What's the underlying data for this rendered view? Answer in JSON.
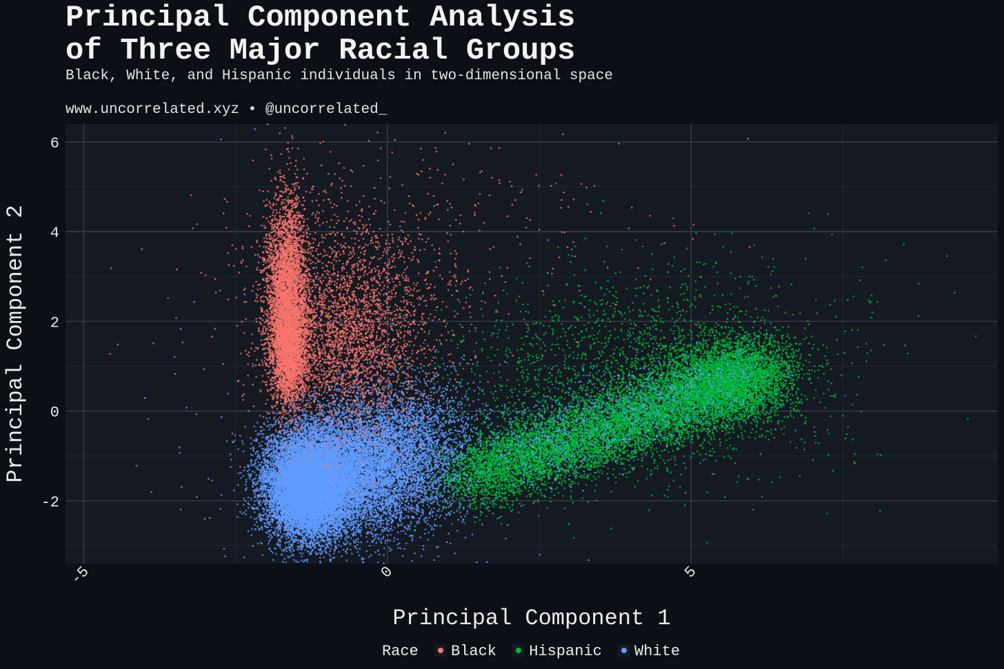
{
  "header": {
    "title_line1": "Principal Component Analysis",
    "title_line2": "of Three Major Racial Groups",
    "subtitle": "Black, White, and Hispanic individuals in two-dimensional space",
    "caption": "www.uncorrelated.xyz • @uncorrelated_"
  },
  "legend": {
    "title": "Race",
    "items": [
      {
        "label": "Black",
        "color": "#f8766d"
      },
      {
        "label": "Hispanic",
        "color": "#00ba38"
      },
      {
        "label": "White",
        "color": "#619cff"
      }
    ]
  },
  "chart_data": {
    "type": "scatter",
    "title": "Principal Component Analysis of Three Major Racial Groups",
    "subtitle": "Black, White, and Hispanic individuals in two-dimensional space",
    "xlabel": "Principal Component 1",
    "ylabel": "Principal Component 2",
    "xlim": [
      -5.3,
      10.05
    ],
    "ylim": [
      -3.4,
      6.4
    ],
    "xticks": [
      -5,
      0,
      5
    ],
    "yticks": [
      -2,
      0,
      2,
      4,
      6
    ],
    "grid": true,
    "legend_position": "bottom",
    "series": [
      {
        "name": "Black",
        "color": "#f8766d",
        "clusters": [
          {
            "n": 4200,
            "cx": -1.65,
            "cy": 2.6,
            "sx": 0.17,
            "sy": 1.1
          },
          {
            "n": 1800,
            "cx": -1.6,
            "cy": 1.3,
            "sx": 0.14,
            "sy": 0.55
          },
          {
            "n": 2800,
            "cx": -0.7,
            "cy": 1.6,
            "sx": 0.65,
            "sy": 1.1
          },
          {
            "n": 600,
            "cx": -0.5,
            "cy": 3.0,
            "sx": 1.0,
            "sy": 1.3
          },
          {
            "n": 200,
            "cx": 0.8,
            "cy": 3.8,
            "sx": 1.8,
            "sy": 1.2
          }
        ]
      },
      {
        "name": "Hispanic",
        "color": "#00ba38",
        "clusters": [
          {
            "n": 9000,
            "type": "band",
            "x0": 1.3,
            "x1": 6.3,
            "y0": -1.5,
            "y1": 0.9,
            "sx": 0.3,
            "sy": 0.4
          },
          {
            "n": 2500,
            "cx": 5.6,
            "cy": 0.7,
            "sx": 0.55,
            "sy": 0.5
          },
          {
            "n": 2000,
            "cx": 4.0,
            "cy": 0.7,
            "sx": 1.6,
            "sy": 1.1
          },
          {
            "n": 150,
            "cx": 5.5,
            "cy": 2.5,
            "sx": 1.6,
            "sy": 1.0
          }
        ]
      },
      {
        "name": "White",
        "color": "#619cff",
        "clusters": [
          {
            "n": 6000,
            "cx": -1.3,
            "cy": -1.7,
            "sx": 0.35,
            "sy": 0.55
          },
          {
            "n": 4000,
            "cx": -0.6,
            "cy": -1.3,
            "sx": 0.65,
            "sy": 0.7
          },
          {
            "n": 1200,
            "cx": 0.4,
            "cy": -0.8,
            "sx": 0.6,
            "sy": 0.8
          },
          {
            "n": 800,
            "type": "band",
            "x0": 2.0,
            "x1": 6.0,
            "y0": -1.0,
            "y1": 0.9,
            "sx": 0.4,
            "sy": 0.4
          },
          {
            "n": 60,
            "cx": -1.0,
            "cy": 0.0,
            "sx": 2.5,
            "sy": 2.5
          }
        ]
      }
    ]
  }
}
